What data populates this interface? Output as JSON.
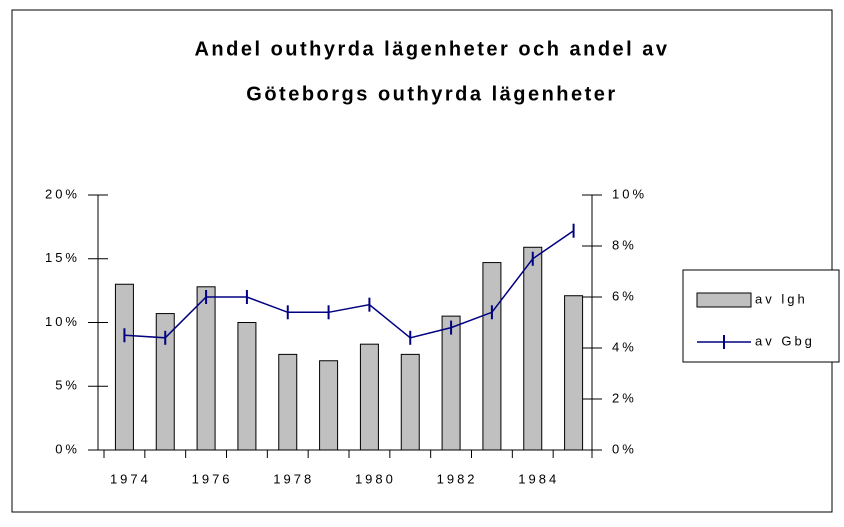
{
  "chart_data": {
    "type": "bar-line",
    "title": [
      "Andel outhyrda lägenheter och andel av",
      "Göteborgs outhyrda lägenheter"
    ],
    "categories": [
      "1974",
      null,
      "1976",
      null,
      "1978",
      null,
      "1980",
      null,
      "1982",
      null,
      "1984",
      null
    ],
    "series": [
      {
        "name": "av lgh",
        "type": "bar",
        "color": "#c0c0c0",
        "values": [
          13.0,
          10.7,
          12.8,
          10.0,
          7.5,
          7.0,
          8.3,
          7.5,
          10.5,
          14.7,
          15.9,
          12.1
        ]
      },
      {
        "name": "av Gbg",
        "type": "line",
        "axis": "y2",
        "color": "#000080",
        "values": [
          4.5,
          4.4,
          6.0,
          6.0,
          5.4,
          5.4,
          5.7,
          4.4,
          4.8,
          5.4,
          7.5,
          8.6
        ]
      }
    ],
    "ylim": [
      0,
      20
    ],
    "yticks": [
      {
        "value": 0,
        "label": "0%"
      },
      {
        "value": 5,
        "label": "5%"
      },
      {
        "value": 10,
        "label": "10%"
      },
      {
        "value": 15,
        "label": "15%"
      },
      {
        "value": 20,
        "label": "20%"
      }
    ],
    "y2lim": [
      0,
      10
    ],
    "y2ticks": [
      {
        "value": 0,
        "label": "0%"
      },
      {
        "value": 2,
        "label": "2%"
      },
      {
        "value": 4,
        "label": "4%"
      },
      {
        "value": 6,
        "label": "6%"
      },
      {
        "value": 8,
        "label": "8%"
      },
      {
        "value": 10,
        "label": "10%"
      }
    ],
    "legend": "right"
  }
}
